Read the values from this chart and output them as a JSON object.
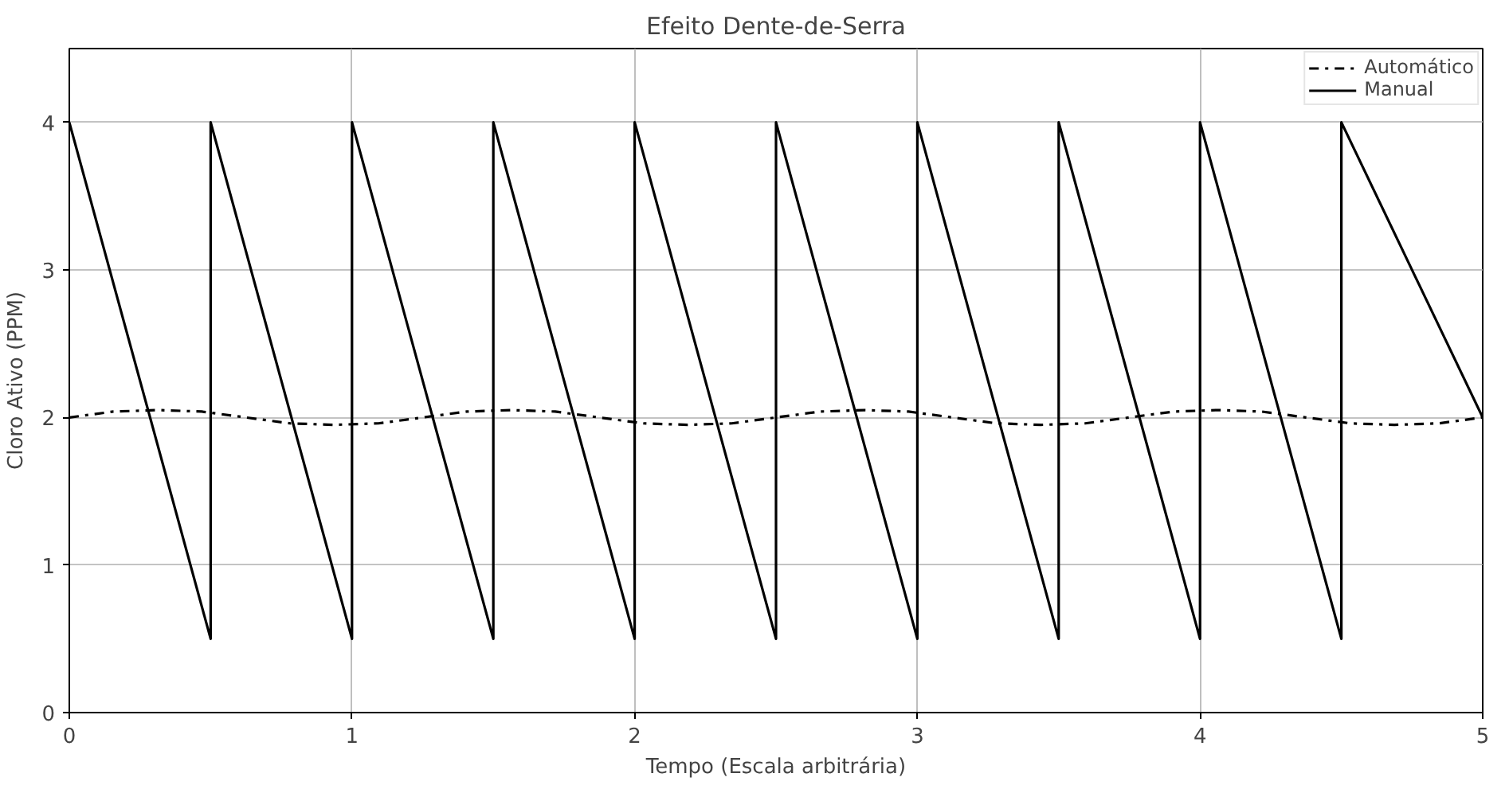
{
  "chart_data": {
    "type": "line",
    "title": "Efeito Dente-de-Serra",
    "xlabel": "Tempo (Escala arbitrária)",
    "ylabel": "Cloro Ativo (PPM)",
    "xlim": [
      0,
      5
    ],
    "ylim": [
      0,
      4.5
    ],
    "xticks": [
      0,
      1,
      2,
      3,
      4,
      5
    ],
    "yticks": [
      0,
      1,
      2,
      3,
      4
    ],
    "grid": true,
    "legend": "top right",
    "marker": "none",
    "series": [
      {
        "name": "Automático",
        "color": "#000000",
        "line_style": "dashdot",
        "x": [
          0,
          0.15625,
          0.3125,
          0.46875,
          0.625,
          0.78125,
          0.9375,
          1.09375,
          1.25,
          1.40625,
          1.5625,
          1.71875,
          1.875,
          2.03125,
          2.1875,
          2.34375,
          2.5,
          2.65625,
          2.8125,
          2.96875,
          3.125,
          3.28125,
          3.4375,
          3.59375,
          3.75,
          3.90625,
          4.0625,
          4.21875,
          4.375,
          4.53125,
          4.6875,
          4.84375,
          5
        ],
        "values": [
          2,
          2.04,
          2.05,
          2.04,
          2,
          1.96,
          1.95,
          1.96,
          2,
          2.04,
          2.05,
          2.04,
          2,
          1.96,
          1.95,
          1.96,
          2,
          2.04,
          2.05,
          2.04,
          2,
          1.96,
          1.95,
          1.96,
          2,
          2.04,
          2.05,
          2.04,
          2,
          1.96,
          1.95,
          1.96,
          2
        ]
      },
      {
        "name": "Manual",
        "color": "#000000",
        "line_style": "solid",
        "x": [
          0,
          0.5,
          0.5,
          1,
          1,
          1.5,
          1.5,
          2,
          2,
          2.5,
          2.5,
          3,
          3,
          3.5,
          3.5,
          4,
          4,
          4.5,
          4.5,
          5
        ],
        "values": [
          4,
          0.5,
          4,
          0.5,
          4,
          0.5,
          4,
          0.5,
          4,
          0.5,
          4,
          0.5,
          4,
          0.5,
          4,
          0.5,
          4,
          0.5,
          4,
          2.0
        ]
      }
    ]
  }
}
